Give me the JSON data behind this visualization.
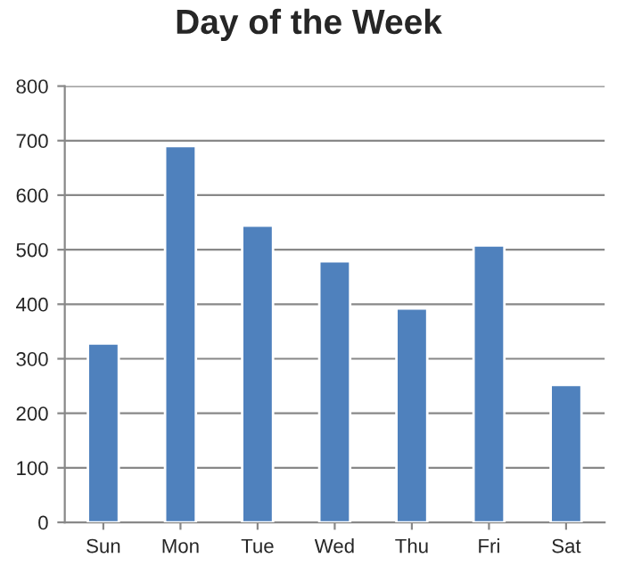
{
  "chart_data": {
    "type": "bar",
    "title": "Day of the Week",
    "categories": [
      "Sun",
      "Mon",
      "Tue",
      "Wed",
      "Thu",
      "Fri",
      "Sat"
    ],
    "values": [
      328,
      690,
      544,
      479,
      392,
      508,
      252
    ],
    "color": "#4f81bd",
    "ylim": [
      0,
      800
    ],
    "yticks": [
      0,
      100,
      200,
      300,
      400,
      500,
      600,
      700,
      800
    ],
    "grid": "y"
  }
}
